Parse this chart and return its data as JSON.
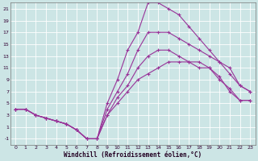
{
  "xlabel": "Windchill (Refroidissement éolien,°C)",
  "background_color": "#cce5e5",
  "grid_color": "#ffffff",
  "line_color": "#993399",
  "xlim": [
    -0.5,
    23.5
  ],
  "ylim": [
    -2,
    22
  ],
  "xticks": [
    0,
    1,
    2,
    3,
    4,
    5,
    6,
    7,
    8,
    9,
    10,
    11,
    12,
    13,
    14,
    15,
    16,
    17,
    18,
    19,
    20,
    21,
    22,
    23
  ],
  "yticks": [
    -1,
    1,
    3,
    5,
    7,
    9,
    11,
    13,
    15,
    17,
    19,
    21
  ],
  "series": [
    [
      4,
      4,
      3,
      2.5,
      2,
      1.5,
      0.5,
      -1,
      -1,
      3,
      5,
      7,
      9,
      10,
      11,
      12,
      12,
      12,
      11,
      11,
      9,
      7.5,
      5.5,
      5.5
    ],
    [
      4,
      4,
      3,
      2.5,
      2,
      1.5,
      0.5,
      -1,
      -1,
      3,
      6,
      8,
      11,
      13,
      14,
      14,
      13,
      12,
      12,
      11,
      9.5,
      7,
      5.5,
      5.5
    ],
    [
      4,
      4,
      3,
      2.5,
      2,
      1.5,
      0.5,
      -1,
      -1,
      5,
      9,
      14,
      17,
      22,
      22,
      21,
      20,
      18,
      16,
      14,
      12,
      11,
      8,
      7
    ],
    [
      4,
      4,
      3,
      2.5,
      2,
      1.5,
      0.5,
      -1,
      -1,
      4,
      7,
      10,
      14,
      17,
      17,
      17,
      16,
      15,
      14,
      13,
      12,
      10,
      8,
      7
    ]
  ]
}
